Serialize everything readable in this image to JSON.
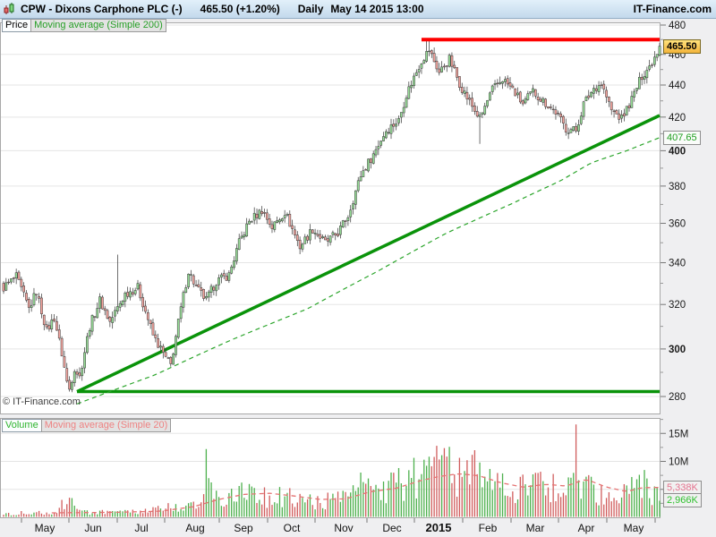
{
  "header": {
    "symbol_title": "CPW - Dixons Carphone PLC (-)",
    "last_price": "465.50 (+1.20%)",
    "timeframe": "Daily",
    "datetime": "May 14 2015 13:00",
    "brand": "IT-Finance.com"
  },
  "price_pane": {
    "tabs": [
      {
        "label": "Price"
      },
      {
        "label": "Moving average (Simple 200)"
      }
    ],
    "copyright": "© IT-Finance.com",
    "badges": {
      "last": "465.50",
      "ma200": "407.65"
    }
  },
  "volume_pane": {
    "tabs": [
      {
        "label": "Volume"
      },
      {
        "label": "Moving average (Simple 20)"
      }
    ],
    "badges": {
      "ma20": "5,338K",
      "last": "2,966K"
    }
  },
  "chart_data": {
    "type": "candlestick",
    "title": "CPW - Dixons Carphone PLC, Daily, May 14 2015 13:00",
    "scale": "logarithmic",
    "days": 260,
    "price_axis": {
      "ticks_labeled": [
        280,
        300,
        320,
        340,
        360,
        380,
        400,
        420,
        440,
        460,
        480
      ],
      "ticks_minor": [
        290,
        310,
        330,
        350,
        370,
        390,
        410,
        430,
        450,
        470
      ],
      "bold_ticks": [
        300,
        400
      ],
      "range_shown": [
        272,
        482
      ],
      "last_price": 465.5,
      "ma200_last": 407.65
    },
    "volume_axis": {
      "ticks_labeled": [
        [
          5,
          "5M"
        ],
        [
          10,
          "10M"
        ],
        [
          15,
          "15M"
        ]
      ],
      "ticks_minor": [
        2.5,
        7.5,
        12.5,
        17.5
      ],
      "ma20_last_millions": 5.338,
      "last_volume_millions": 2.966
    },
    "x_axis": {
      "month_labels": [
        [
          "May",
          50
        ],
        [
          "Jun",
          104
        ],
        [
          "Jul",
          158
        ],
        [
          "Aug",
          218
        ],
        [
          "Sep",
          272
        ],
        [
          "Oct",
          326
        ],
        [
          "Nov",
          384
        ],
        [
          "Dec",
          438
        ],
        [
          "2015",
          490
        ],
        [
          "Feb",
          545
        ],
        [
          "Mar",
          598
        ],
        [
          "Apr",
          655
        ],
        [
          "May",
          708
        ]
      ],
      "bold_labels": [
        "2015"
      ],
      "boundary_tick_x": [
        24,
        77,
        131,
        184,
        245,
        299,
        352,
        410,
        463,
        517,
        571,
        624,
        678,
        732
      ]
    },
    "close_keypoints": [
      [
        0,
        328
      ],
      [
        5,
        333
      ],
      [
        10,
        318
      ],
      [
        13,
        326
      ],
      [
        17,
        308
      ],
      [
        20,
        314
      ],
      [
        23,
        298
      ],
      [
        25,
        286
      ],
      [
        26,
        283
      ],
      [
        28,
        292
      ],
      [
        30,
        288
      ],
      [
        34,
        310
      ],
      [
        38,
        322
      ],
      [
        42,
        312
      ],
      [
        48,
        325
      ],
      [
        53,
        328
      ],
      [
        59,
        306
      ],
      [
        64,
        296
      ],
      [
        66,
        293
      ],
      [
        70,
        318
      ],
      [
        73,
        336
      ],
      [
        76,
        328
      ],
      [
        80,
        322
      ],
      [
        84,
        331
      ],
      [
        89,
        334
      ],
      [
        93,
        350
      ],
      [
        97,
        361
      ],
      [
        102,
        367
      ],
      [
        106,
        358
      ],
      [
        111,
        366
      ],
      [
        117,
        348
      ],
      [
        122,
        357
      ],
      [
        127,
        350
      ],
      [
        132,
        355
      ],
      [
        136,
        364
      ],
      [
        141,
        386
      ],
      [
        146,
        398
      ],
      [
        151,
        412
      ],
      [
        156,
        418
      ],
      [
        159,
        434
      ],
      [
        165,
        456
      ],
      [
        168,
        463
      ],
      [
        172,
        448
      ],
      [
        176,
        457
      ],
      [
        180,
        441
      ],
      [
        183,
        432
      ],
      [
        186,
        424
      ],
      [
        188,
        419
      ],
      [
        193,
        437
      ],
      [
        197,
        444
      ],
      [
        201,
        437
      ],
      [
        205,
        428
      ],
      [
        209,
        436
      ],
      [
        213,
        430
      ],
      [
        218,
        423
      ],
      [
        222,
        413
      ],
      [
        226,
        412
      ],
      [
        229,
        428
      ],
      [
        233,
        438
      ],
      [
        236,
        441
      ],
      [
        240,
        424
      ],
      [
        244,
        419
      ],
      [
        248,
        431
      ],
      [
        252,
        446
      ],
      [
        255,
        452
      ],
      [
        259,
        465.5
      ]
    ],
    "high_overrides": {
      "45": 344,
      "167": 470,
      "168": 470
    },
    "low_overrides": {
      "26": 282,
      "188": 404
    },
    "volume_keypoints": [
      [
        0,
        0.7
      ],
      [
        10,
        0.8
      ],
      [
        20,
        0.9
      ],
      [
        26,
        3.2
      ],
      [
        30,
        1.0
      ],
      [
        45,
        0.8
      ],
      [
        58,
        1.1
      ],
      [
        64,
        1.8
      ],
      [
        70,
        1.6
      ],
      [
        78,
        2.2
      ],
      [
        80,
        6.5
      ],
      [
        82,
        4.5
      ],
      [
        88,
        2.5
      ],
      [
        93,
        5.0
      ],
      [
        100,
        3.5
      ],
      [
        108,
        4.0
      ],
      [
        117,
        3.0
      ],
      [
        125,
        2.8
      ],
      [
        135,
        3.2
      ],
      [
        141,
        5.0
      ],
      [
        148,
        4.5
      ],
      [
        155,
        5.5
      ],
      [
        162,
        7.0
      ],
      [
        168,
        8.0
      ],
      [
        174,
        9.0
      ],
      [
        178,
        7.5
      ],
      [
        183,
        8.5
      ],
      [
        188,
        7.0
      ],
      [
        194,
        5.5
      ],
      [
        200,
        5.0
      ],
      [
        207,
        5.5
      ],
      [
        213,
        6.0
      ],
      [
        220,
        4.5
      ],
      [
        226,
        8.0
      ],
      [
        230,
        5.0
      ],
      [
        238,
        4.0
      ],
      [
        244,
        3.5
      ],
      [
        250,
        6.0
      ],
      [
        255,
        5.5
      ],
      [
        259,
        3.0
      ]
    ],
    "volume_spikes": {
      "26": 3.5,
      "80": 12.2,
      "81": 7.0,
      "93": 5.6,
      "141": 8.0,
      "166": 10.3,
      "170": 10.8,
      "176": 12.6,
      "186": 12.0,
      "188": 9.8,
      "226": 16.6,
      "251": 7.6,
      "259": 2.966
    },
    "ma200_keypoints": [
      [
        29,
        277
      ],
      [
        60,
        289
      ],
      [
        90,
        304
      ],
      [
        120,
        318
      ],
      [
        148,
        336
      ],
      [
        175,
        355
      ],
      [
        200,
        370
      ],
      [
        220,
        383
      ],
      [
        232,
        393
      ],
      [
        246,
        400
      ],
      [
        259,
        407.65
      ]
    ],
    "volume_ma20_keypoints": [
      [
        19,
        0.8
      ],
      [
        45,
        0.9
      ],
      [
        62,
        1.1
      ],
      [
        75,
        1.9
      ],
      [
        85,
        3.2
      ],
      [
        95,
        4.1
      ],
      [
        105,
        4.3
      ],
      [
        115,
        3.8
      ],
      [
        125,
        3.2
      ],
      [
        135,
        3.3
      ],
      [
        145,
        4.6
      ],
      [
        155,
        5.2
      ],
      [
        165,
        6.6
      ],
      [
        172,
        7.3
      ],
      [
        180,
        7.8
      ],
      [
        188,
        7.4
      ],
      [
        196,
        6.2
      ],
      [
        205,
        5.4
      ],
      [
        214,
        5.9
      ],
      [
        222,
        5.6
      ],
      [
        230,
        6.8
      ],
      [
        238,
        5.4
      ],
      [
        246,
        4.6
      ],
      [
        252,
        5.3
      ],
      [
        259,
        5.338
      ]
    ],
    "overlays": {
      "resistance": {
        "price": 470,
        "from_day": 165,
        "to_day": 259
      },
      "horizontal_support": {
        "price": 282,
        "from_day": 29,
        "to_day": 259
      },
      "trendline": {
        "from": [
          29,
          282
        ],
        "to": [
          259,
          421
        ]
      }
    },
    "colors": {
      "up_fill": "#97dc97",
      "down_fill": "#f4a49e",
      "candle_border": "#333333",
      "wick": "#333333",
      "vol_up": "#4db04d",
      "vol_down": "#d05c5c",
      "ma200": "#2ba52b",
      "vol_ma": "#e57373",
      "resistance": "#fe0000",
      "trend": "#0a930a",
      "grid": "#e5e5e5",
      "pane_border": "#a9a9a9",
      "axis_text": "#1a1a1a"
    }
  }
}
